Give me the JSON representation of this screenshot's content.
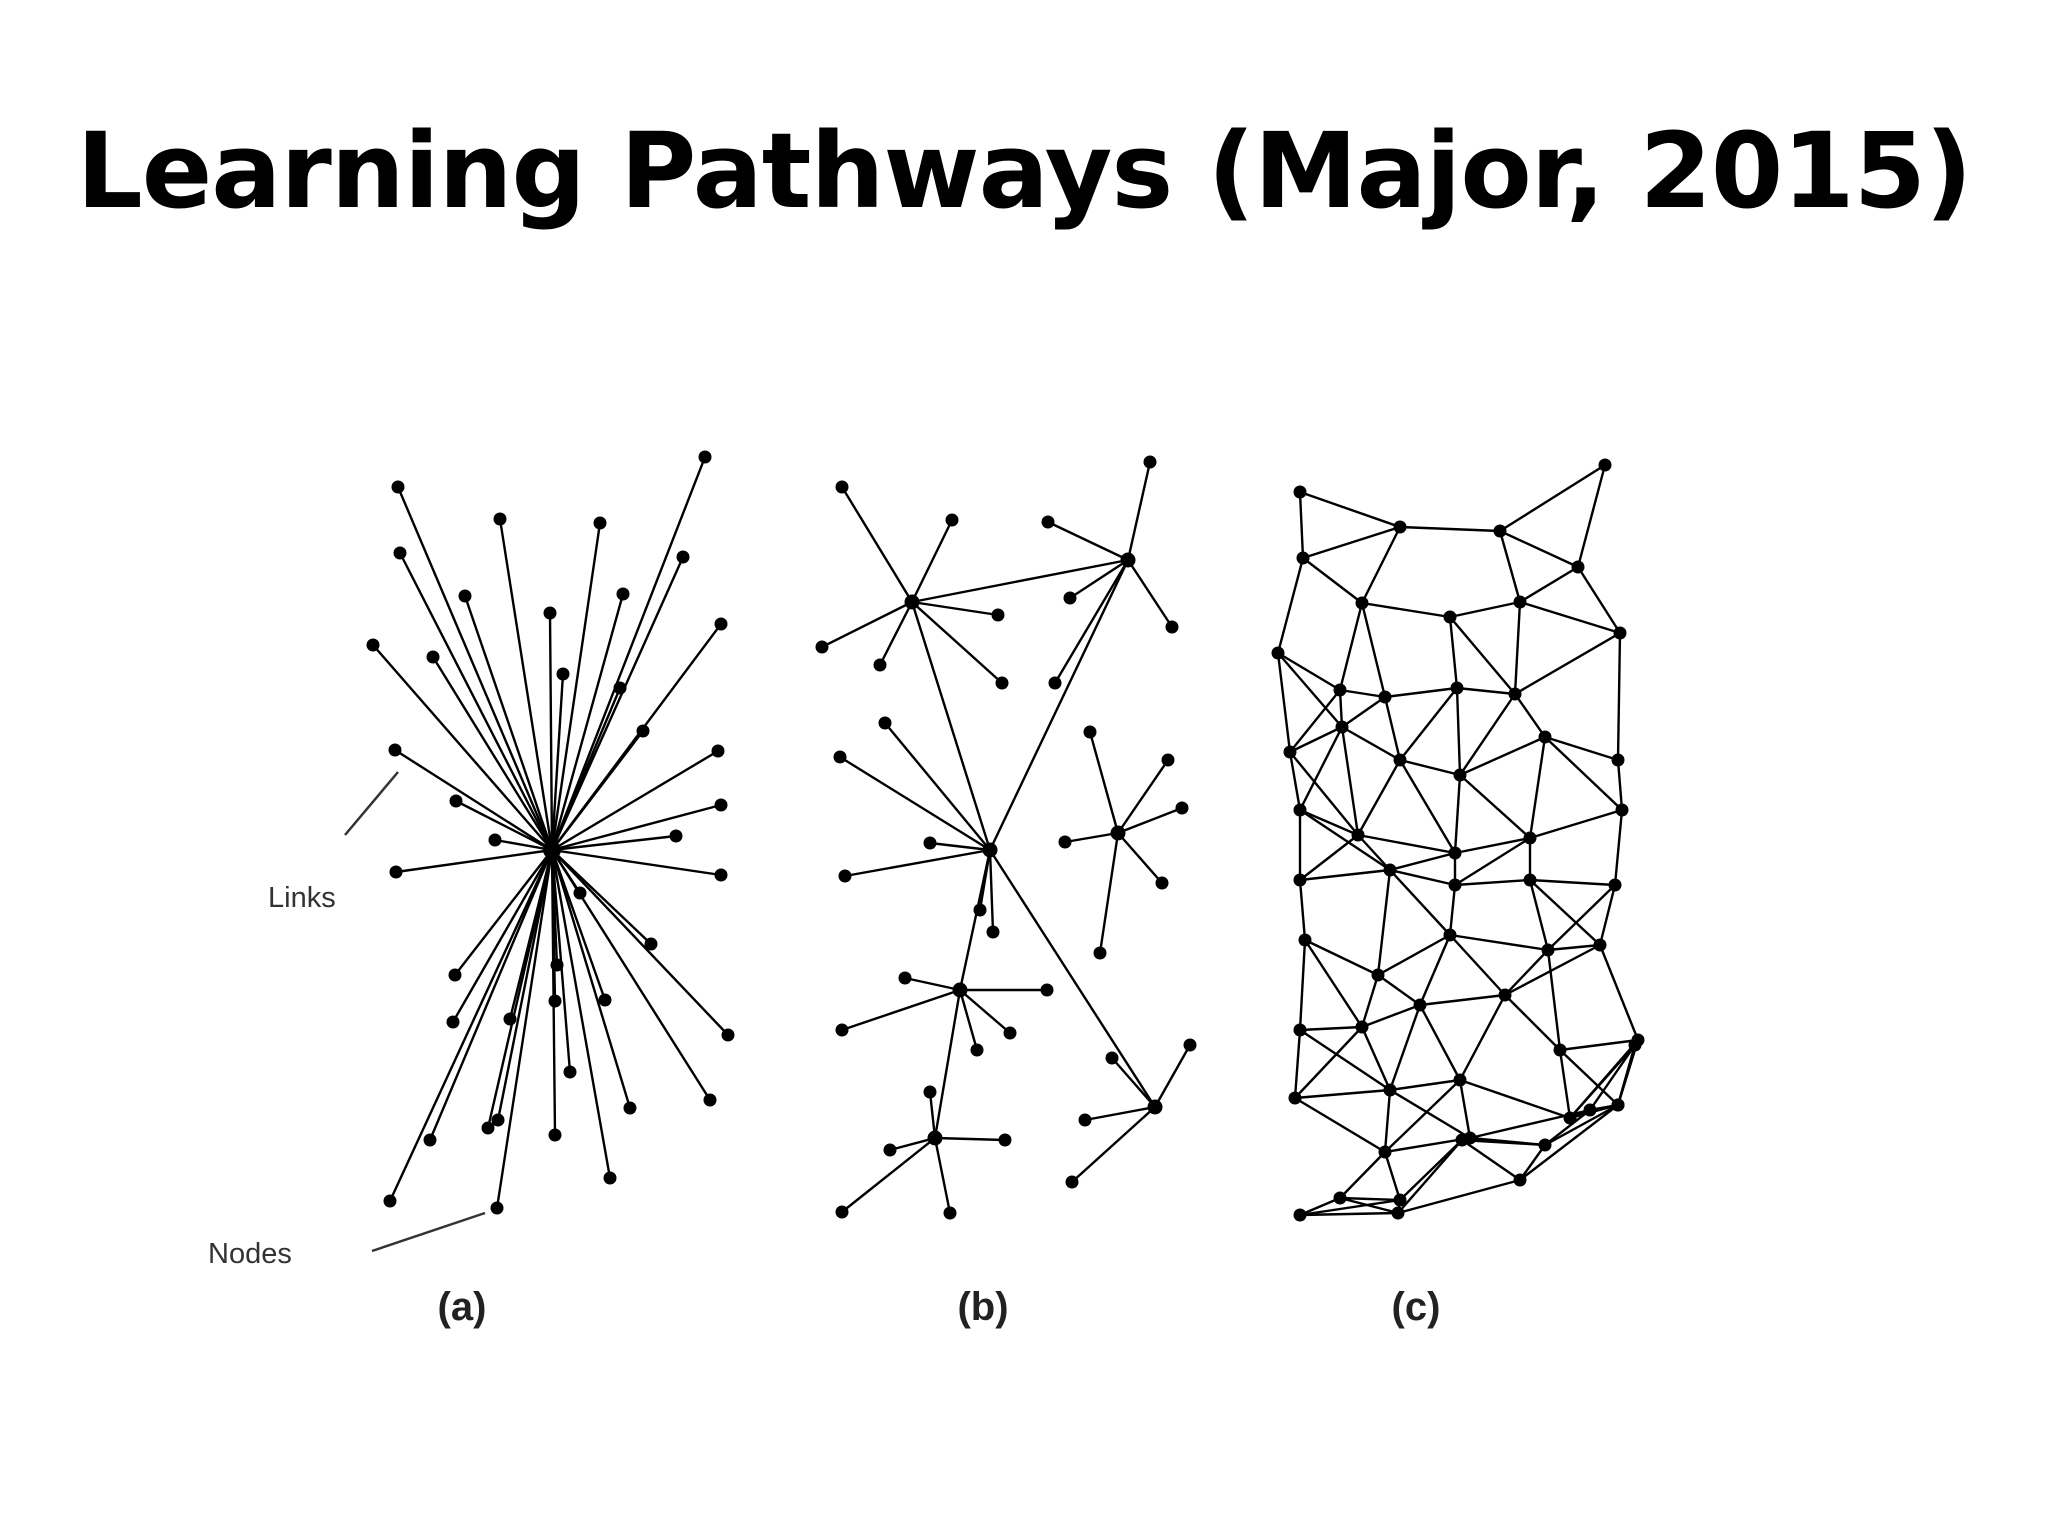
{
  "slide": {
    "title": "Learning Pathways (Major, 2015)"
  },
  "figure": {
    "labels": {
      "links": "Links",
      "nodes": "Nodes"
    },
    "panels": [
      {
        "id": "a",
        "caption": "(a)"
      },
      {
        "id": "b",
        "caption": "(b)"
      },
      {
        "id": "c",
        "caption": "(c)"
      }
    ],
    "colors": {
      "ink": "#000000",
      "text": "#222222"
    }
  }
}
